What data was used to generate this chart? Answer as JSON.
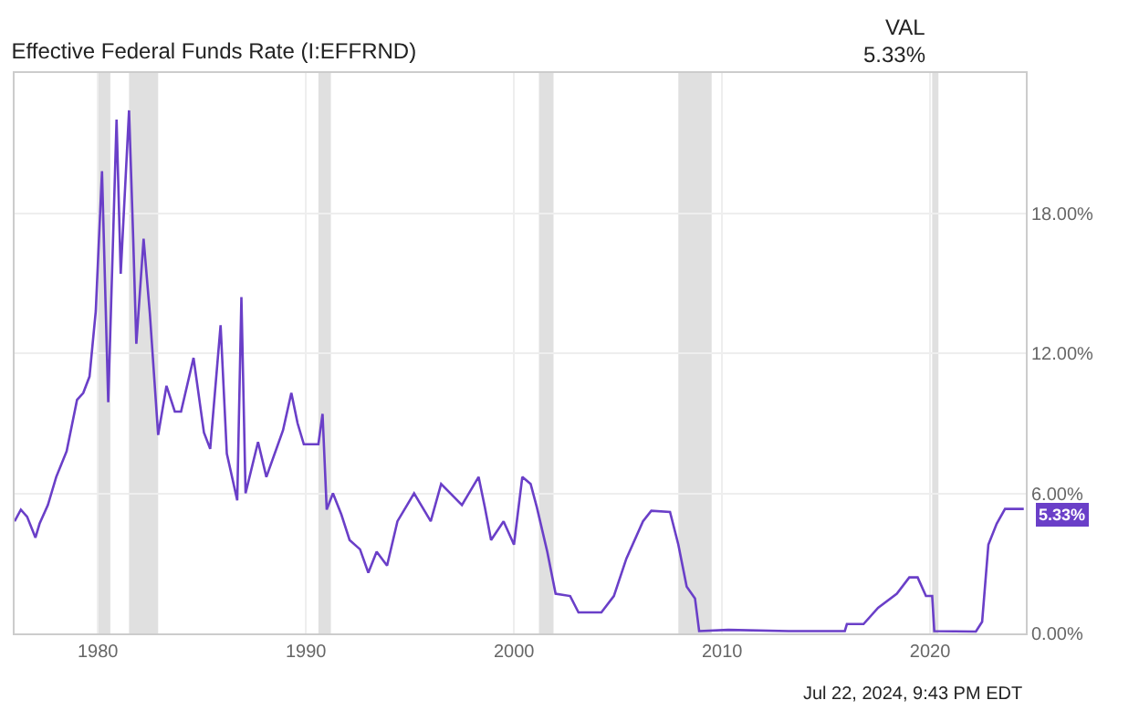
{
  "chart_data": {
    "type": "line",
    "title": "Effective Federal Funds Rate (I:EFFRND)",
    "annotations": [
      {
        "text": "VAL"
      },
      {
        "text": "5.33%"
      },
      {
        "text": "5.33%",
        "x": 2024.5,
        "y": 5.33
      },
      {
        "text": "Jul 22, 2024, 9:43 PM EDT"
      }
    ],
    "x": [
      1976.0,
      1976.3,
      1976.6,
      1977.0,
      1977.2,
      1977.6,
      1978.0,
      1978.5,
      1979.0,
      1979.3,
      1979.6,
      1979.9,
      1980.2,
      1980.5,
      1980.9,
      1981.1,
      1981.3,
      1981.5,
      1981.7,
      1981.85,
      1982.2,
      1982.5,
      1982.9,
      1983.3,
      1983.7,
      1984.0,
      1984.6,
      1985.1,
      1985.4,
      1985.9,
      1986.2,
      1986.7,
      1986.9,
      1987.1,
      1987.7,
      1988.1,
      1988.9,
      1989.3,
      1989.6,
      1989.9,
      1990.6,
      1990.8,
      1991.0,
      1991.3,
      1991.7,
      1992.1,
      1992.6,
      1993.0,
      1993.4,
      1993.9,
      1994.4,
      1995.2,
      1996.0,
      1996.5,
      1997.5,
      1998.3,
      1998.6,
      1998.9,
      1999.5,
      2000.0,
      2000.4,
      2000.8,
      2001.1,
      2001.6,
      2002.0,
      2002.7,
      2003.1,
      2004.2,
      2004.8,
      2005.4,
      2006.2,
      2006.6,
      2007.5,
      2007.9,
      2008.3,
      2008.7,
      2008.9,
      2010.3,
      2013.2,
      2015.9,
      2016.0,
      2016.8,
      2017.5,
      2018.4,
      2019.0,
      2019.4,
      2019.8,
      2020.1,
      2020.2,
      2022.2,
      2022.5,
      2022.8,
      2023.2,
      2023.6,
      2024.5
    ],
    "series": [
      {
        "color": "#6a3fc8",
        "values": [
          4.8,
          5.3,
          5.0,
          4.1,
          4.7,
          5.5,
          6.7,
          7.8,
          10.0,
          10.3,
          11.0,
          13.8,
          19.8,
          9.9,
          22.0,
          15.4,
          18.9,
          22.4,
          16.9,
          12.4,
          16.9,
          13.7,
          8.5,
          10.6,
          9.5,
          9.5,
          11.8,
          8.6,
          7.9,
          13.2,
          7.7,
          5.7,
          14.4,
          6.0,
          8.2,
          6.7,
          8.7,
          10.3,
          9.0,
          8.1,
          8.1,
          9.4,
          5.3,
          6.0,
          5.1,
          4.0,
          3.6,
          2.6,
          3.5,
          2.9,
          4.8,
          6.0,
          4.8,
          6.4,
          5.5,
          6.7,
          5.4,
          4.0,
          4.8,
          3.8,
          6.7,
          6.4,
          5.4,
          3.5,
          1.7,
          1.6,
          0.9,
          0.9,
          1.6,
          3.2,
          4.8,
          5.25,
          5.2,
          3.8,
          2.0,
          1.5,
          0.1,
          0.15,
          0.1,
          0.1,
          0.4,
          0.4,
          1.1,
          1.7,
          2.4,
          2.4,
          1.6,
          1.6,
          0.1,
          0.08,
          0.5,
          3.8,
          4.7,
          5.33,
          5.33
        ]
      }
    ],
    "xlim": [
      1976.0,
      2024.6
    ],
    "xticks": [
      1980,
      1990,
      2000,
      2010,
      2020
    ],
    "ylim": [
      0,
      24
    ],
    "yticks": [
      {
        "value": 0,
        "label": "0.00%"
      },
      {
        "value": 6,
        "label": "6.00%"
      },
      {
        "value": 12,
        "label": "12.00%"
      },
      {
        "value": 18,
        "label": "18.00%"
      }
    ],
    "bands": [
      {
        "axis": "x",
        "from": 1980.0,
        "to": 1980.6,
        "color": "#e0e0e0"
      },
      {
        "axis": "x",
        "from": 1981.5,
        "to": 1982.9,
        "color": "#e0e0e0"
      },
      {
        "axis": "x",
        "from": 1990.6,
        "to": 1991.2,
        "color": "#e0e0e0"
      },
      {
        "axis": "x",
        "from": 2001.2,
        "to": 2001.9,
        "color": "#e0e0e0"
      },
      {
        "axis": "x",
        "from": 2007.9,
        "to": 2009.5,
        "color": "#e0e0e0"
      },
      {
        "axis": "x",
        "from": 2020.1,
        "to": 2020.4,
        "color": "#e0e0e0"
      }
    ],
    "grid": true,
    "marker": "none",
    "line_style": "solid"
  }
}
